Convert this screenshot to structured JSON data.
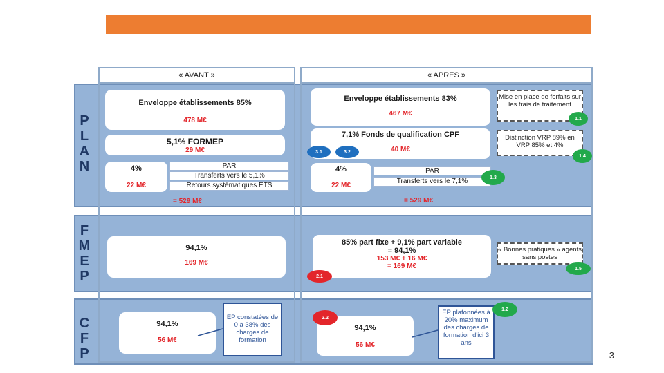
{
  "header": {
    "avant": "« AVANT »",
    "apres": "« APRES »"
  },
  "sections": {
    "plan": [
      "P",
      "L",
      "A",
      "N"
    ],
    "fmep": [
      "F",
      "M",
      "E",
      "P"
    ],
    "cfp": [
      "C",
      "F",
      "P"
    ]
  },
  "plan": {
    "avant": {
      "envelope_title": "Enveloppe établissements 85%",
      "envelope_amount": "478 M€",
      "formep_title": "5,1% FORMEP",
      "formep_amount": "29 M€",
      "par_pct": "4%",
      "par_amount": "22 M€",
      "par_label": "PAR",
      "transfers": "Transferts vers le 5,1%",
      "returns": "Retours systématiques ETS",
      "total": "= 529 M€"
    },
    "apres": {
      "envelope_title": "Enveloppe établissements 83%",
      "envelope_amount": "467 M€",
      "cpf_title": "7,1% Fonds de qualification CPF",
      "cpf_amount": "40 M€",
      "par_pct": "4%",
      "par_amount": "22 M€",
      "par_label": "PAR",
      "transfers": "Transferts vers le 7,1%",
      "total": "= 529 M€",
      "note1": "Mise en place de forfaits sur les frais de traitement",
      "note2": "Distinction VRP 89% en VRP 85% et 4%"
    }
  },
  "fmep": {
    "avant": {
      "pct": "94,1%",
      "amount": "169 M€"
    },
    "apres": {
      "line1": "85% part fixe + 9,1% part variable",
      "line2": "= 94,1%",
      "line3": "153 M€ + 16 M€",
      "line4": "= 169 M€",
      "note": "« Bonnes pratiques » agents sans postes"
    }
  },
  "cfp": {
    "avant": {
      "pct": "94,1%",
      "amount": "56 M€",
      "callout": "EP constatées de 0 à 38% des charges de formation"
    },
    "apres": {
      "pct": "94,1%",
      "amount": "56 M€",
      "callout": "EP plafonnées à 20% maximum des charges de formation d'ici 3 ans"
    }
  },
  "badges": {
    "b11": "1.1",
    "b14": "1.4",
    "b13": "1.3",
    "b15": "1.5",
    "b12": "1.2",
    "b31": "3.1",
    "b32": "3.2",
    "b21": "2.1",
    "b22": "2.2"
  },
  "colors": {
    "accent": "#ed7d31",
    "section": "#95b3d7",
    "red": "#e3262b",
    "green": "#22a94b",
    "blue": "#1f6fbf"
  },
  "page_number": "3"
}
